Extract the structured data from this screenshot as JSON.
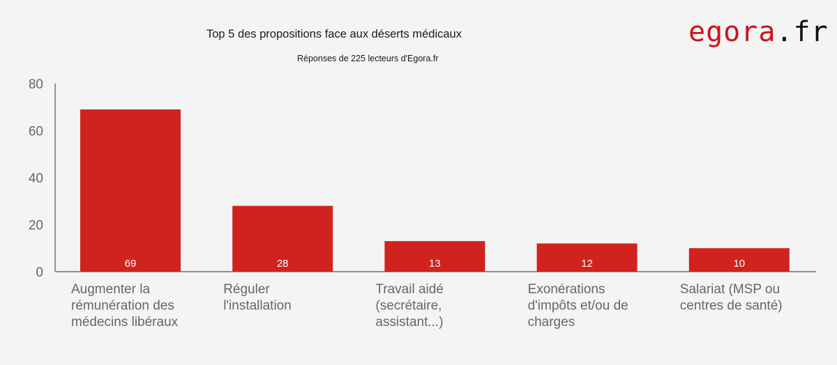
{
  "colors": {
    "background": "#f4f4f4",
    "bar": "#d0231f",
    "axis": "#555555",
    "text_muted": "#666666",
    "brand_red": "#d0121b"
  },
  "brand": {
    "name": "egora",
    "tld": ".fr"
  },
  "chart_data": {
    "type": "bar",
    "title": "Top 5 des propositions face aux déserts médicaux",
    "subtitle": "Réponses de 225 lecteurs d'Egora.fr",
    "xlabel": "",
    "ylabel": "",
    "categories": [
      "Augmenter la rémunération des médecins libéraux",
      "Réguler l'installation",
      "Travail aidé (secrétaire, assistant...)",
      "Exonérations d'impôts et/ou de charges",
      "Salariat (MSP ou centres de santé)"
    ],
    "category_lines": [
      [
        "Augmenter la",
        "rémunération des",
        "médecins libéraux"
      ],
      [
        "Réguler",
        "l'installation"
      ],
      [
        "Travail aidé",
        "(secrétaire,",
        "assistant...)"
      ],
      [
        "Exonérations",
        "d'impôts et/ou de",
        "charges"
      ],
      [
        "Salariat (MSP ou",
        "centres de santé)"
      ]
    ],
    "values": [
      69,
      28,
      13,
      12,
      10
    ],
    "data_labels": [
      "69",
      "28",
      "13",
      "12",
      "10"
    ],
    "ylim": [
      0,
      80
    ],
    "yticks": [
      0,
      20,
      40,
      60,
      80
    ],
    "grid": false,
    "legend": "none"
  }
}
